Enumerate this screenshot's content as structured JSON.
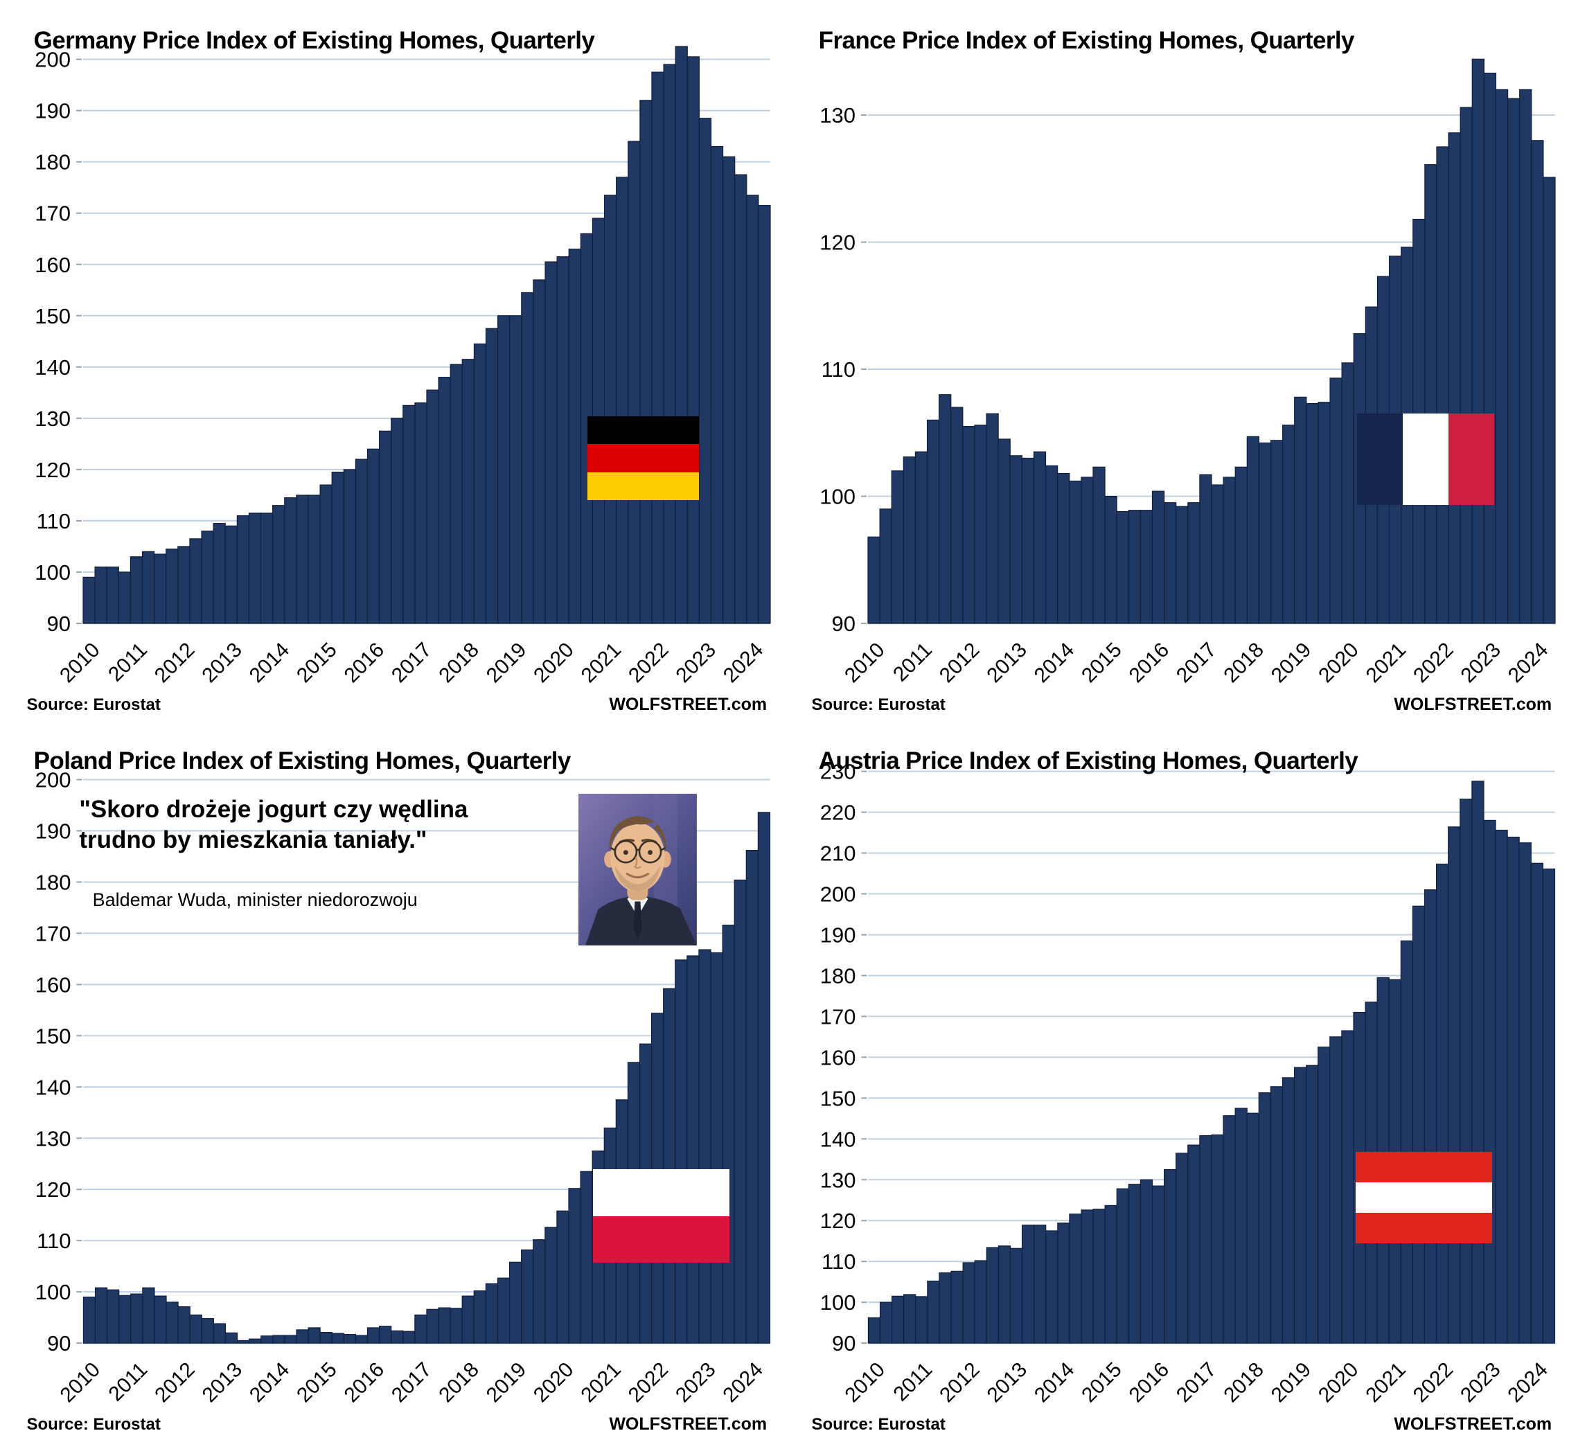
{
  "chart_data": [
    {
      "id": "germany",
      "type": "bar",
      "title": "Germany Price Index of Existing Homes, Quarterly",
      "source": "Source: Eurostat",
      "brand": "WOLFSTREET.com",
      "frequency": "quarterly",
      "years": [
        "2010",
        "2011",
        "2012",
        "2013",
        "2014",
        "2015",
        "2016",
        "2017",
        "2018",
        "2019",
        "2020",
        "2021",
        "2022",
        "2023",
        "2024"
      ],
      "values": [
        99,
        101,
        101,
        100,
        103,
        104,
        103.5,
        104.5,
        105,
        106.5,
        108,
        109.5,
        109,
        111,
        111.5,
        111.5,
        113,
        114.5,
        115,
        115,
        117,
        119.5,
        120,
        122,
        124,
        127.5,
        130,
        132.5,
        133,
        135.5,
        138,
        140.5,
        141.5,
        144.5,
        147.5,
        150,
        150,
        154.5,
        157,
        160.5,
        161.5,
        163,
        166,
        169,
        173.5,
        177,
        184,
        192,
        197.5,
        199,
        202.5,
        200.5,
        188.5,
        183,
        181,
        177.5,
        173.5,
        171.5
      ],
      "ylim": [
        90,
        204
      ],
      "ytick_step": 10,
      "ytick_max": 200,
      "grid": true,
      "legend": "none",
      "bar_color": "#1F3864",
      "bar_stroke": "#121F3C",
      "grid_color": "#BDD1E2",
      "axis_color": "#B2BAC3",
      "flag_overlay": {
        "name": "germany-flag",
        "orientation": "horizontal",
        "colors": [
          "#000000",
          "#DD0000",
          "#FFCE00"
        ],
        "left_pct": 74.9,
        "top_pct": 57.8,
        "width_pct": 14.2,
        "height_pct": 11.6
      }
    },
    {
      "id": "france",
      "type": "bar",
      "title": "France Price Index of Existing Homes, Quarterly",
      "source": "Source: Eurostat",
      "brand": "WOLFSTREET.com",
      "frequency": "quarterly",
      "years": [
        "2010",
        "2011",
        "2012",
        "2013",
        "2014",
        "2015",
        "2016",
        "2017",
        "2018",
        "2019",
        "2020",
        "2021",
        "2022",
        "2023",
        "2024"
      ],
      "values": [
        96.8,
        99,
        102,
        103.1,
        103.5,
        106,
        108,
        107,
        105.5,
        105.6,
        106.5,
        104.5,
        103.2,
        103,
        103.5,
        102.4,
        101.8,
        101.2,
        101.5,
        102.3,
        100,
        98.8,
        98.9,
        98.9,
        100.4,
        99.5,
        99.2,
        99.5,
        101.7,
        100.9,
        101.5,
        102.3,
        104.7,
        104.2,
        104.4,
        105.6,
        107.8,
        107.3,
        107.4,
        109.3,
        110.5,
        112.8,
        114.9,
        117.3,
        118.9,
        119.6,
        121.8,
        126.1,
        127.5,
        128.6,
        130.6,
        134.4,
        133.3,
        132,
        131.3,
        132,
        128,
        125.1
      ],
      "ylim": [
        90,
        136
      ],
      "ytick_step": 10,
      "ytick_max": 130,
      "grid": true,
      "legend": "none",
      "bar_color": "#1F3864",
      "bar_stroke": "#121F3C",
      "grid_color": "#BDD1E2",
      "axis_color": "#B2BAC3",
      "flag_overlay": {
        "name": "france-flag",
        "orientation": "vertical",
        "colors": [
          "#14264D",
          "#FFFFFF",
          "#CE1F3E"
        ],
        "left_pct": 73.0,
        "top_pct": 57.4,
        "width_pct": 17.5,
        "height_pct": 12.7
      }
    },
    {
      "id": "poland",
      "type": "bar",
      "title": "Poland Price Index of Existing Homes, Quarterly",
      "source": "Source: Eurostat",
      "brand": "WOLFSTREET.com",
      "frequency": "quarterly",
      "years": [
        "2010",
        "2011",
        "2012",
        "2013",
        "2014",
        "2015",
        "2016",
        "2017",
        "2018",
        "2019",
        "2020",
        "2021",
        "2022",
        "2023",
        "2024"
      ],
      "values": [
        99,
        100.8,
        100.4,
        99.3,
        99.6,
        100.8,
        99.2,
        98,
        97.1,
        95.5,
        94.8,
        93.8,
        92,
        90.5,
        90.8,
        91.4,
        91.5,
        91.5,
        92.6,
        93,
        92.1,
        91.9,
        91.7,
        91.5,
        93,
        93.3,
        92.4,
        92.3,
        95.5,
        96.6,
        96.9,
        96.8,
        99.2,
        100.2,
        101.6,
        102.7,
        105.8,
        108.2,
        110.2,
        112.6,
        115.8,
        120.2,
        123.5,
        127.5,
        132,
        137.5,
        144.8,
        148.4,
        154.4,
        159.2,
        164.8,
        165.6,
        166.8,
        166.2,
        171.6,
        180.4,
        186.2,
        193.6
      ],
      "ylim": [
        90,
        204
      ],
      "ytick_step": 10,
      "ytick_max": 200,
      "grid": true,
      "legend": "none",
      "bar_color": "#1F3864",
      "bar_stroke": "#121F3C",
      "grid_color": "#BDD1E2",
      "axis_color": "#B2BAC3",
      "quote_line1": "\"Skoro drożeje jogurt czy wędlina",
      "quote_line2": "trudno by mieszkania taniały.\"",
      "quote_attribution": "Baldemar Wuda, minister niedorozwoju",
      "flag_overlay": {
        "name": "poland-flag",
        "orientation": "horizontal",
        "colors": [
          "#FFFFFF",
          "#DC143C"
        ],
        "left_pct": 75.6,
        "top_pct": 62.4,
        "width_pct": 17.4,
        "height_pct": 13.0
      }
    },
    {
      "id": "austria",
      "type": "bar",
      "title": "Austria Price Index of Existing Homes, Quarterly",
      "source": "Source: Eurostat",
      "brand": "WOLFSTREET.com",
      "frequency": "quarterly",
      "years": [
        "2010",
        "2011",
        "2012",
        "2013",
        "2014",
        "2015",
        "2016",
        "2017",
        "2018",
        "2019",
        "2020",
        "2021",
        "2022",
        "2023",
        "2024"
      ],
      "values": [
        96.2,
        100,
        101.5,
        101.9,
        101.4,
        105.2,
        107.2,
        107.6,
        109.7,
        110.2,
        113.4,
        113.8,
        113.2,
        118.9,
        118.9,
        117.5,
        119.4,
        121.6,
        122.6,
        122.8,
        123.7,
        127.8,
        128.9,
        130,
        128.5,
        132.5,
        136.5,
        138.5,
        140.8,
        141,
        145.7,
        147.5,
        146.3,
        151.3,
        152.8,
        155,
        157.5,
        158,
        162.5,
        165,
        166.5,
        171,
        173.5,
        179.5,
        179,
        188.5,
        197,
        201,
        207.3,
        216.4,
        223.2,
        227.6,
        218,
        215.6,
        213.9,
        212.5,
        207.5,
        206.1
      ],
      "ylim": [
        90,
        233
      ],
      "ytick_step": 10,
      "ytick_max": 230,
      "grid": true,
      "legend": "none",
      "bar_color": "#1F3864",
      "bar_stroke": "#121F3C",
      "grid_color": "#BDD1E2",
      "axis_color": "#B2BAC3",
      "flag_overlay": {
        "name": "austria-flag",
        "orientation": "horizontal",
        "colors": [
          "#E1251B",
          "#FFFFFF",
          "#E1251B"
        ],
        "left_pct": 72.8,
        "top_pct": 60.0,
        "width_pct": 17.4,
        "height_pct": 12.7
      }
    }
  ]
}
